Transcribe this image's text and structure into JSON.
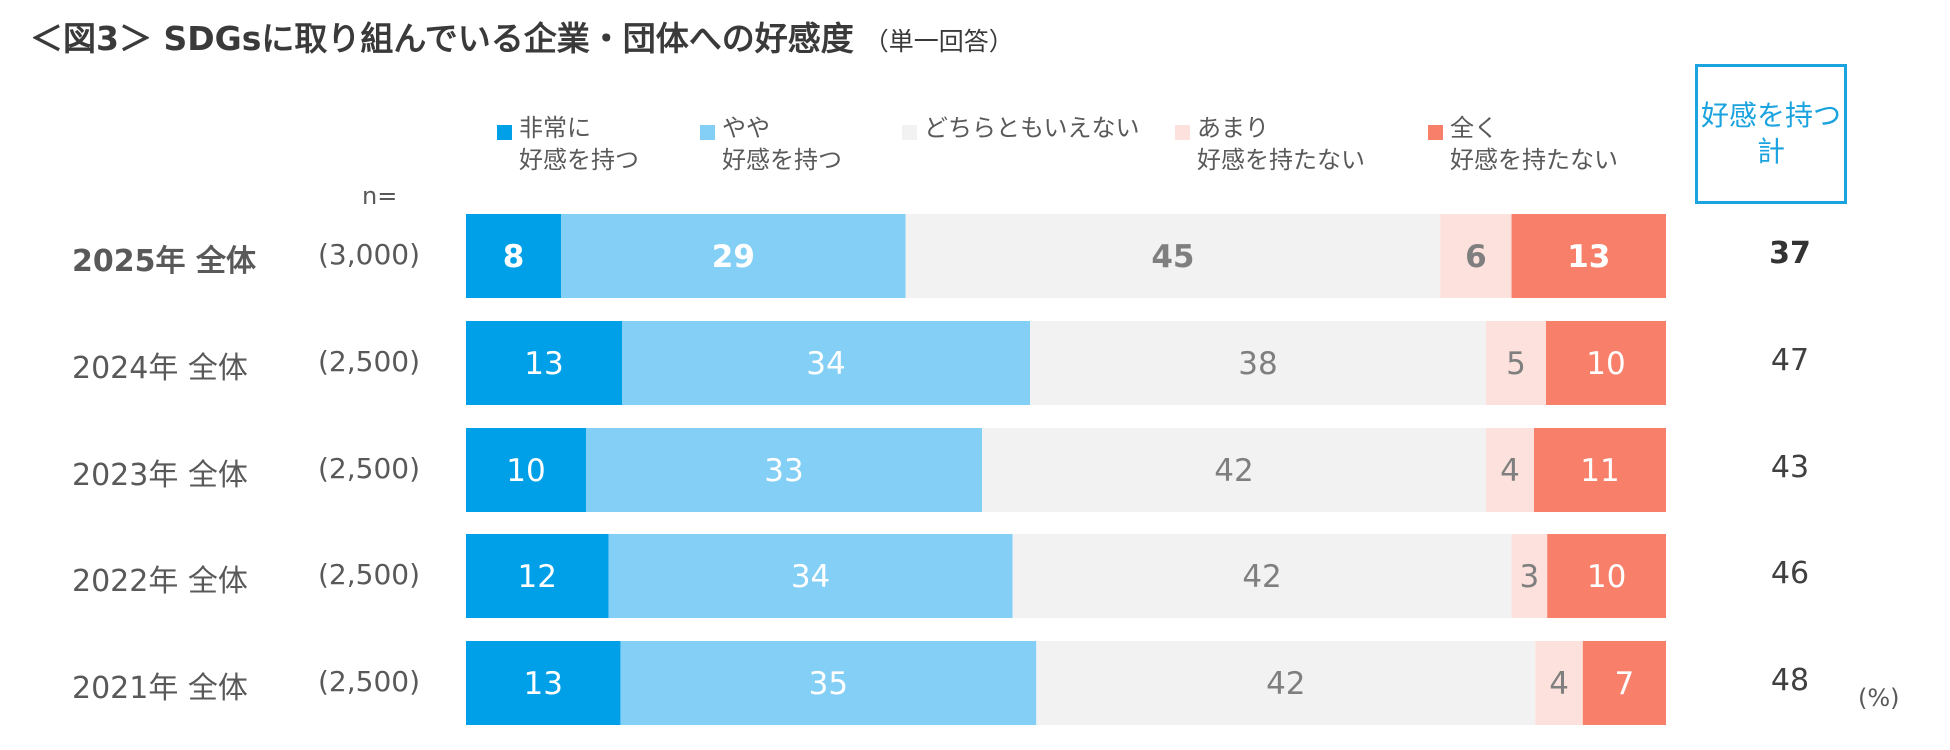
{
  "title": "＜図3＞ SDGsに取り組んでいる企業・団体への好感度",
  "subtitle": "（単一回答）",
  "n_label": "n=",
  "total_header": "好感を持つ\n計",
  "unit": "(%)",
  "colors": {
    "very": "#00a0e9",
    "somewhat": "#83cff5",
    "neutral": "#f2f2f2",
    "not_very": "#fde1dc",
    "not_at_all": "#f8806a"
  },
  "chart_data": {
    "type": "bar",
    "orientation": "horizontal",
    "stacked": true,
    "normalized": true,
    "categories": [
      "2025年 全体",
      "2024年 全体",
      "2023年 全体",
      "2022年 全体",
      "2021年 全体"
    ],
    "sample_sizes": [
      "(3,000)",
      "(2,500)",
      "(2,500)",
      "(2,500)",
      "(2,500)"
    ],
    "series": [
      {
        "name": "非常に\n好感を持つ",
        "values": [
          8,
          13,
          10,
          12,
          13
        ]
      },
      {
        "name": "やや\n好感を持つ",
        "values": [
          29,
          34,
          33,
          34,
          35
        ]
      },
      {
        "name": "どちらともいえない",
        "values": [
          45,
          38,
          42,
          42,
          42
        ]
      },
      {
        "name": "あまり\n好感を持たない",
        "values": [
          6,
          5,
          4,
          3,
          4
        ]
      },
      {
        "name": "全く\n好感を持たない",
        "values": [
          13,
          10,
          11,
          10,
          7
        ]
      }
    ],
    "totals": [
      37,
      47,
      43,
      46,
      48
    ],
    "legend_position": "top"
  }
}
